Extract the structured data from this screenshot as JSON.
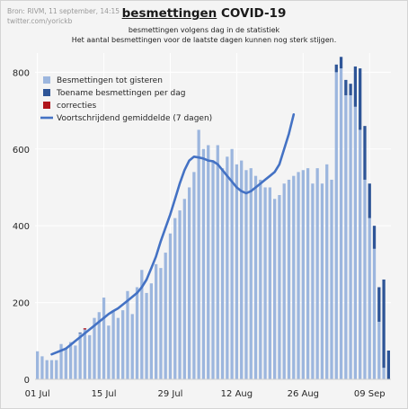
{
  "source": {
    "line1": "Bron: RIVM, 11 september, 14:15",
    "line2": "twitter.com/yorickb"
  },
  "title": {
    "underlined": "besmettingen",
    "rest": " COVID-19"
  },
  "subtitle": {
    "line1": "besmettingen volgens dag in de statistiek",
    "line2": "Het aantal besmettingen voor de laatste dagen kunnen nog sterk stijgen."
  },
  "colors": {
    "base_bar": "#9cb6de",
    "increase_bar": "#2e5597",
    "correction_bar": "#b0151c",
    "avg_line": "#4472c4",
    "grid": "#ffffff"
  },
  "chart_data": {
    "type": "bar",
    "x_start_date": "2020-07-01",
    "ylim": [
      0,
      850
    ],
    "yticks": [
      0,
      200,
      400,
      600,
      800
    ],
    "xticks": [
      {
        "label": "01 Jul",
        "date": "2020-07-01"
      },
      {
        "label": "15 Jul",
        "date": "2020-07-15"
      },
      {
        "label": "29 Jul",
        "date": "2020-07-29"
      },
      {
        "label": "12 Aug",
        "date": "2020-08-12"
      },
      {
        "label": "26 Aug",
        "date": "2020-08-26"
      },
      {
        "label": "09 Sep",
        "date": "2020-09-09"
      }
    ],
    "grid": true,
    "legend_position": "top-left",
    "series": [
      {
        "name": "Besmettingen tot gisteren",
        "type": "bar",
        "values": [
          73,
          60,
          50,
          50,
          50,
          92,
          80,
          97,
          88,
          120,
          130,
          115,
          160,
          175,
          213,
          140,
          180,
          160,
          180,
          230,
          170,
          240,
          285,
          225,
          250,
          300,
          290,
          330,
          380,
          420,
          440,
          470,
          500,
          540,
          650,
          600,
          610,
          570,
          610,
          550,
          580,
          600,
          560,
          570,
          545,
          550,
          530,
          520,
          500,
          500,
          470,
          480,
          510,
          520,
          530,
          540,
          545,
          550,
          510,
          550,
          510,
          560,
          520,
          800,
          810,
          740,
          740,
          710,
          650,
          520,
          420,
          340,
          150,
          30,
          0
        ]
      },
      {
        "name": "Toename besmettingen per dag",
        "type": "bar",
        "values": [
          0,
          0,
          0,
          0,
          0,
          0,
          0,
          0,
          0,
          2,
          0,
          0,
          0,
          0,
          0,
          0,
          0,
          0,
          0,
          0,
          0,
          0,
          0,
          0,
          0,
          0,
          0,
          0,
          0,
          0,
          0,
          0,
          0,
          0,
          0,
          0,
          0,
          0,
          0,
          0,
          0,
          0,
          0,
          0,
          0,
          0,
          0,
          0,
          0,
          0,
          0,
          0,
          0,
          0,
          0,
          0,
          0,
          0,
          0,
          0,
          0,
          0,
          0,
          20,
          30,
          40,
          30,
          105,
          160,
          140,
          90,
          60,
          90,
          230,
          75
        ]
      },
      {
        "name": "correcties",
        "type": "bar",
        "values": [
          0,
          0,
          0,
          0,
          0,
          0,
          0,
          0,
          0,
          0,
          3,
          0,
          0,
          0,
          0,
          0,
          0,
          0,
          0,
          0,
          0,
          0,
          0,
          0,
          0,
          0,
          0,
          0,
          0,
          0,
          0,
          0,
          0,
          0,
          0,
          0,
          0,
          0,
          0,
          0,
          0,
          0,
          0,
          0,
          0,
          0,
          0,
          0,
          0,
          0,
          0,
          0,
          0,
          0,
          0,
          0,
          0,
          0,
          0,
          0,
          0,
          0,
          0,
          0,
          0,
          0,
          0,
          0,
          0,
          0,
          0,
          0,
          0,
          0,
          0
        ]
      },
      {
        "name": "Voortschrijdend gemiddelde (7 dagen)",
        "type": "line",
        "start_index": 3,
        "values": [
          65,
          70,
          75,
          80,
          90,
          100,
          110,
          120,
          130,
          140,
          150,
          160,
          170,
          178,
          185,
          195,
          205,
          215,
          225,
          240,
          260,
          290,
          320,
          360,
          395,
          430,
          470,
          510,
          545,
          570,
          580,
          578,
          575,
          570,
          568,
          560,
          545,
          530,
          515,
          500,
          490,
          485,
          490,
          500,
          510,
          520,
          530,
          540,
          560,
          600,
          640,
          690
        ]
      }
    ]
  }
}
